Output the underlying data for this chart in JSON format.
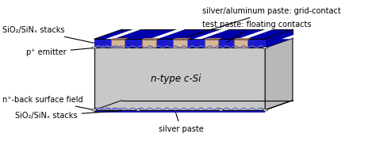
{
  "bg_color": "#ffffff",
  "body_color": "#c8c8c8",
  "body_top_color": "#d8d8d8",
  "body_right_color": "#b8b8b8",
  "blue_front_color": "#1a1acc",
  "blue_top_color": "#0000aa",
  "blue_right_color": "#0000aa",
  "silver_contact_color": "#d4b896",
  "silver_contact_top": "#c0a080",
  "zigzag_top_color": "#6666bb",
  "zigzag_bot_color": "#6666bb",
  "labels": {
    "top_right1": "silver/aluminum paste: grid-contact",
    "top_right2": "test paste: floating contacts",
    "top_left1": "SiO₂/SiNₓ stacks",
    "mid_left1": "p⁺ emitter",
    "center": "n-type c-Si",
    "bot_left1": "n⁺-back surface field",
    "bot_left2": "SiO₂/SiNₓ stacks",
    "bot_right": "silver paste"
  },
  "figsize": [
    4.74,
    1.88
  ],
  "dpi": 100
}
